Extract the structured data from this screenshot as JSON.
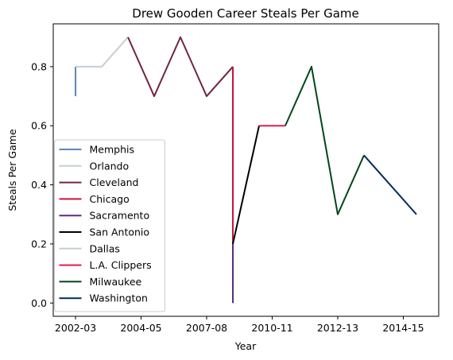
{
  "chart_data": {
    "type": "line",
    "title": "Drew Gooden Career Steals Per Game",
    "xlabel": "Year",
    "ylabel": "Steals Per Game",
    "x_ticks": [
      {
        "label": "2002-03",
        "x": 0
      },
      {
        "label": "2004-05",
        "x": 2.5
      },
      {
        "label": "2007-08",
        "x": 5
      },
      {
        "label": "2010-11",
        "x": 7.5
      },
      {
        "label": "2012-13",
        "x": 10
      },
      {
        "label": "2014-15",
        "x": 12.5
      }
    ],
    "y_ticks": [
      0.0,
      0.2,
      0.4,
      0.6,
      0.8
    ],
    "y_tick_labels": [
      "0.0",
      "0.2",
      "0.4",
      "0.6",
      "0.8"
    ],
    "xlim": [
      -0.85,
      13.85
    ],
    "ylim": [
      -0.045,
      0.945
    ],
    "grid": false,
    "legend_position": "lower-left",
    "series": [
      {
        "name": "Memphis",
        "color": "#5d87b8",
        "points": [
          [
            0,
            0.7
          ],
          [
            0,
            0.8
          ]
        ]
      },
      {
        "name": "Orlando",
        "color": "#c4ced4",
        "points": [
          [
            0,
            0.8
          ],
          [
            1,
            0.8
          ],
          [
            2,
            0.9
          ]
        ]
      },
      {
        "name": "Cleveland",
        "color": "#6f263d",
        "points": [
          [
            2,
            0.9
          ],
          [
            3,
            0.7
          ],
          [
            4,
            0.9
          ],
          [
            5,
            0.7
          ],
          [
            6,
            0.8
          ]
        ]
      },
      {
        "name": "Chicago",
        "color": "#ce1141",
        "points": [
          [
            6,
            0.8
          ],
          [
            6,
            0.0
          ]
        ]
      },
      {
        "name": "Sacramento",
        "color": "#5a2d81",
        "points": [
          [
            6,
            0.0
          ],
          [
            6,
            0.2
          ]
        ]
      },
      {
        "name": "San Antonio",
        "color": "#000000",
        "points": [
          [
            6,
            0.2
          ],
          [
            7,
            0.6
          ]
        ]
      },
      {
        "name": "Dallas",
        "color": "#c4ced4",
        "points": [
          [
            7,
            0.6
          ]
        ]
      },
      {
        "name": "L.A. Clippers",
        "color": "#e31b4f",
        "points": [
          [
            7,
            0.6
          ],
          [
            8,
            0.6
          ]
        ]
      },
      {
        "name": "Milwaukee",
        "color": "#00471b",
        "points": [
          [
            8,
            0.6
          ],
          [
            9,
            0.8
          ],
          [
            10,
            0.3
          ],
          [
            11,
            0.5
          ]
        ]
      },
      {
        "name": "Washington",
        "color": "#002b5c",
        "points": [
          [
            11,
            0.5
          ],
          [
            13,
            0.3
          ]
        ]
      }
    ]
  }
}
